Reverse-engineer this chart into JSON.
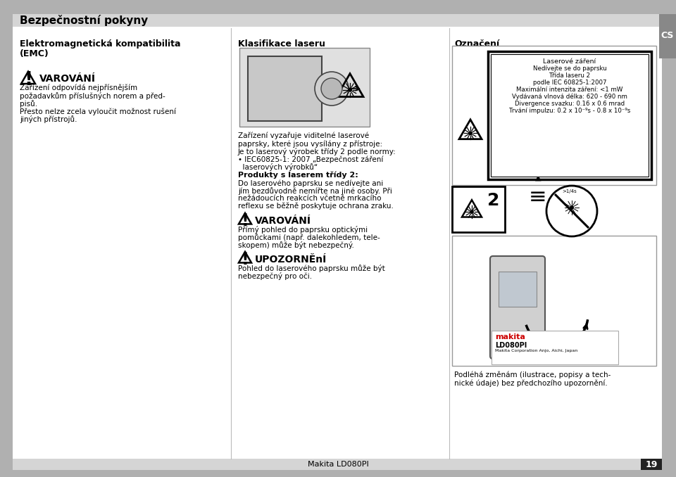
{
  "page_title": "Bezpečnostní pokyny",
  "cs_label": "CS",
  "page_number": "19",
  "footer_text": "Makita LD080PI",
  "bg_color": "#ffffff",
  "header_bg": "#d0d0d0",
  "sidebar_color": "#9a9a9a",
  "col1_heading_line1": "Elektromagnetická kompatibilita",
  "col1_heading_line2": "(EMC)",
  "col2_heading": "Klasifikace laseru",
  "col3_heading": "Označení",
  "varovani_text1": "VAROVÁNÍ",
  "varovani_body1_line1": "Zařízení odpovídá nejpřísnějším",
  "varovani_body1_line2": "požadavkům příslušných norem a před-",
  "varovani_body1_line3": "pisů.",
  "varovani_body1_line4": "Přesto nelze zcela vyloučit možnost rušení",
  "varovani_body1_line5": "jiných přístrojů.",
  "laser_desc_line1": "Zařízení vyzařuje viditelné laserové",
  "laser_desc_line2": "paprsky, které jsou vysílány z přístroje:",
  "laser_desc_line3": "Je to laserový výrobek třídy 2 podle normy:",
  "bullet_line1": "• IEC60825-1: 2007 „Bezpečnost záření",
  "bullet_line2": "  laserových výrobků“",
  "produkty_heading": "Produkty s laserem třídy 2:",
  "produkty_line1": "Do laserového paprsku se nedívejte ani",
  "produkty_line2": "jím bezdůvodně nemířte na jiné osoby. Při",
  "produkty_line3": "nežádoucích reakcích včetně mrkacího",
  "produkty_line4": "reflexu se běžně poskytuje ochrana zraku.",
  "varovani_text2": "VAROVÁNÍ",
  "varovani_body2_line1": "Přímý pohled do paprsku optickými",
  "varovani_body2_line2": "pomůckami (např. dalekohledem, tele-",
  "varovani_body2_line3": "skopem) může být nebezpečný.",
  "upozorneni_text": "UPOZORNĚnÍ",
  "upozorneni_line1": "Pohled do laserového paprsku může být",
  "upozorneni_line2": "nebezpečný pro oči.",
  "label_line1": "Laserové záření",
  "label_line2": "Nedívejte se do paprsku",
  "label_line3": "Třída laseru 2",
  "label_line4": "podle IEC 60825-1:2007",
  "label_line5": "Maximální intenzita záření: <1 mW",
  "label_line6": "Vydávaná vlnová délka: 620 - 690 nm",
  "label_line7": "Divergence svazku: 0.16 x 0.6 mrad",
  "label_line8": "Trvání impulzu: 0.2 x 10⁻⁹s - 0.8 x 10⁻⁹s",
  "bottom_note_line1": "Podléhá změnám (ilustrace, popisy a tech-",
  "bottom_note_line2": "nické údaje) bez předchozího upozornění."
}
